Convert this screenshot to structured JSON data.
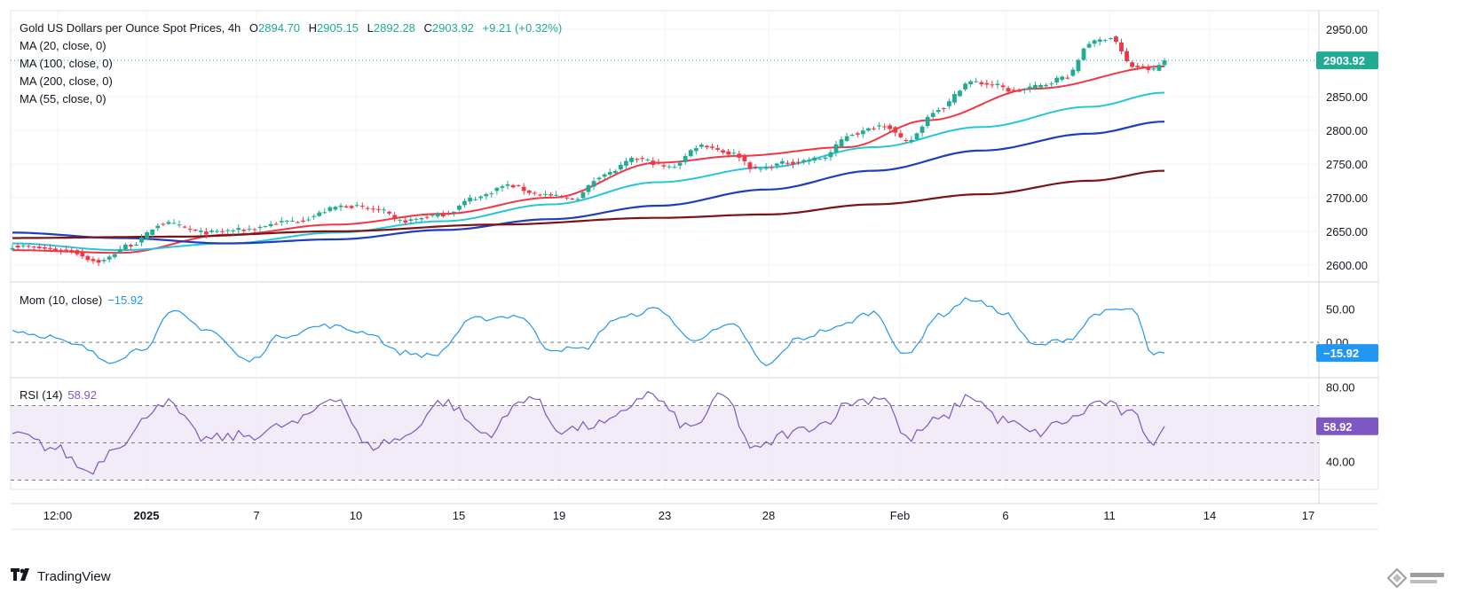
{
  "header": {
    "instrument": "Gold US Dollars per Ounce Spot Prices, 4h",
    "open_label": "O",
    "open": "2894.70",
    "high_label": "H",
    "high": "2905.15",
    "low_label": "L",
    "low": "2892.28",
    "close_label": "C",
    "close": "2903.92",
    "change": "+9.21 (+0.32%)"
  },
  "indicators": {
    "ma20": "MA (20, close, 0)",
    "ma100": "MA (100, close, 0)",
    "ma200": "MA (200, close, 0)",
    "ma55": "MA (55, close, 0)",
    "mom_label": "Mom (10, close)",
    "mom_value": "−15.92",
    "rsi_label": "RSI (14)",
    "rsi_value": "58.92"
  },
  "badges": {
    "price": "2903.92",
    "mom": "−15.92",
    "rsi": "58.92"
  },
  "footer": {
    "brand": "TradingView"
  },
  "colors": {
    "up": "#22ab94",
    "down": "#f23645",
    "ma20": "#f23645",
    "ma55": "#26c6da",
    "ma100": "#1e3ebf",
    "ma200": "#7b1414",
    "mom": "#2196f3",
    "rsi": "#7e57c2",
    "rsi_band": "#ede7f6"
  },
  "chart_data": [
    {
      "type": "candlestick",
      "title": "Gold US Dollars per Ounce Spot Prices, 4h",
      "x_tick_labels": [
        "12:00",
        "2025",
        "7",
        "10",
        "15",
        "19",
        "23",
        "28",
        "Feb",
        "6",
        "11",
        "14",
        "17"
      ],
      "y_tick_labels": [
        "2950.00",
        "2900.00",
        "2850.00",
        "2800.00",
        "2750.00",
        "2700.00",
        "2650.00",
        "2600.00"
      ],
      "ylim": [
        2580,
        2970
      ],
      "last_price": 2903.92,
      "price_anchors": [
        {
          "bar": 0,
          "price": 2628
        },
        {
          "bar": 10,
          "price": 2622
        },
        {
          "bar": 16,
          "price": 2605
        },
        {
          "bar": 22,
          "price": 2630
        },
        {
          "bar": 28,
          "price": 2662
        },
        {
          "bar": 36,
          "price": 2648
        },
        {
          "bar": 42,
          "price": 2652
        },
        {
          "bar": 52,
          "price": 2665
        },
        {
          "bar": 62,
          "price": 2688
        },
        {
          "bar": 68,
          "price": 2682
        },
        {
          "bar": 72,
          "price": 2665
        },
        {
          "bar": 80,
          "price": 2675
        },
        {
          "bar": 86,
          "price": 2700
        },
        {
          "bar": 92,
          "price": 2718
        },
        {
          "bar": 98,
          "price": 2705
        },
        {
          "bar": 104,
          "price": 2698
        },
        {
          "bar": 110,
          "price": 2735
        },
        {
          "bar": 116,
          "price": 2758
        },
        {
          "bar": 122,
          "price": 2745
        },
        {
          "bar": 128,
          "price": 2778
        },
        {
          "bar": 134,
          "price": 2765
        },
        {
          "bar": 138,
          "price": 2742
        },
        {
          "bar": 144,
          "price": 2752
        },
        {
          "bar": 150,
          "price": 2758
        },
        {
          "bar": 156,
          "price": 2795
        },
        {
          "bar": 162,
          "price": 2808
        },
        {
          "bar": 166,
          "price": 2783
        },
        {
          "bar": 172,
          "price": 2832
        },
        {
          "bar": 178,
          "price": 2872
        },
        {
          "bar": 182,
          "price": 2868
        },
        {
          "bar": 186,
          "price": 2858
        },
        {
          "bar": 190,
          "price": 2865
        },
        {
          "bar": 196,
          "price": 2880
        },
        {
          "bar": 200,
          "price": 2930
        },
        {
          "bar": 204,
          "price": 2938
        },
        {
          "bar": 208,
          "price": 2895
        },
        {
          "bar": 212,
          "price": 2890
        },
        {
          "bar": 214,
          "price": 2904
        }
      ],
      "series": [
        {
          "name": "MA (20, close, 0)",
          "anchors": [
            {
              "bar": 0,
              "price": 2622
            },
            {
              "bar": 20,
              "price": 2618
            },
            {
              "bar": 40,
              "price": 2645
            },
            {
              "bar": 60,
              "price": 2660
            },
            {
              "bar": 80,
              "price": 2676
            },
            {
              "bar": 100,
              "price": 2700
            },
            {
              "bar": 120,
              "price": 2752
            },
            {
              "bar": 135,
              "price": 2762
            },
            {
              "bar": 155,
              "price": 2775
            },
            {
              "bar": 170,
              "price": 2815
            },
            {
              "bar": 190,
              "price": 2862
            },
            {
              "bar": 214,
              "price": 2895
            }
          ]
        },
        {
          "name": "MA (55, close, 0)",
          "anchors": [
            {
              "bar": 0,
              "price": 2632
            },
            {
              "bar": 20,
              "price": 2622
            },
            {
              "bar": 40,
              "price": 2632
            },
            {
              "bar": 60,
              "price": 2648
            },
            {
              "bar": 80,
              "price": 2665
            },
            {
              "bar": 100,
              "price": 2690
            },
            {
              "bar": 120,
              "price": 2723
            },
            {
              "bar": 140,
              "price": 2745
            },
            {
              "bar": 160,
              "price": 2775
            },
            {
              "bar": 180,
              "price": 2805
            },
            {
              "bar": 200,
              "price": 2835
            },
            {
              "bar": 214,
              "price": 2856
            }
          ]
        },
        {
          "name": "MA (100, close, 0)",
          "anchors": [
            {
              "bar": 0,
              "price": 2648
            },
            {
              "bar": 20,
              "price": 2640
            },
            {
              "bar": 40,
              "price": 2632
            },
            {
              "bar": 60,
              "price": 2638
            },
            {
              "bar": 80,
              "price": 2652
            },
            {
              "bar": 100,
              "price": 2668
            },
            {
              "bar": 120,
              "price": 2688
            },
            {
              "bar": 140,
              "price": 2712
            },
            {
              "bar": 160,
              "price": 2740
            },
            {
              "bar": 180,
              "price": 2770
            },
            {
              "bar": 200,
              "price": 2795
            },
            {
              "bar": 214,
              "price": 2813
            }
          ]
        },
        {
          "name": "MA (200, close, 0)",
          "anchors": [
            {
              "bar": 0,
              "price": 2640
            },
            {
              "bar": 30,
              "price": 2642
            },
            {
              "bar": 60,
              "price": 2650
            },
            {
              "bar": 90,
              "price": 2660
            },
            {
              "bar": 120,
              "price": 2670
            },
            {
              "bar": 140,
              "price": 2675
            },
            {
              "bar": 160,
              "price": 2690
            },
            {
              "bar": 180,
              "price": 2705
            },
            {
              "bar": 200,
              "price": 2725
            },
            {
              "bar": 214,
              "price": 2740
            }
          ]
        }
      ]
    },
    {
      "type": "line",
      "title": "Mom (10, close)",
      "y_tick_labels": [
        "50.00",
        "0.00"
      ],
      "ylim": [
        -45,
        80
      ],
      "last_value": -15.92,
      "anchors": [
        {
          "bar": 0,
          "value": 18
        },
        {
          "bar": 6,
          "value": 10
        },
        {
          "bar": 12,
          "value": -5
        },
        {
          "bar": 18,
          "value": -28
        },
        {
          "bar": 24,
          "value": -10
        },
        {
          "bar": 30,
          "value": 45
        },
        {
          "bar": 36,
          "value": 20
        },
        {
          "bar": 44,
          "value": -28
        },
        {
          "bar": 50,
          "value": 10
        },
        {
          "bar": 58,
          "value": 25
        },
        {
          "bar": 66,
          "value": 15
        },
        {
          "bar": 72,
          "value": -15
        },
        {
          "bar": 78,
          "value": -20
        },
        {
          "bar": 86,
          "value": 35
        },
        {
          "bar": 94,
          "value": 40
        },
        {
          "bar": 100,
          "value": -10
        },
        {
          "bar": 106,
          "value": -10
        },
        {
          "bar": 112,
          "value": 35
        },
        {
          "bar": 120,
          "value": 50
        },
        {
          "bar": 126,
          "value": 5
        },
        {
          "bar": 134,
          "value": 25
        },
        {
          "bar": 140,
          "value": -35
        },
        {
          "bar": 146,
          "value": 5
        },
        {
          "bar": 152,
          "value": 20
        },
        {
          "bar": 160,
          "value": 45
        },
        {
          "bar": 166,
          "value": -20
        },
        {
          "bar": 172,
          "value": 40
        },
        {
          "bar": 178,
          "value": 65
        },
        {
          "bar": 184,
          "value": 45
        },
        {
          "bar": 190,
          "value": -5
        },
        {
          "bar": 196,
          "value": 5
        },
        {
          "bar": 202,
          "value": 45
        },
        {
          "bar": 208,
          "value": 50
        },
        {
          "bar": 212,
          "value": -20
        },
        {
          "bar": 214,
          "value": -15.92
        }
      ]
    },
    {
      "type": "line",
      "title": "RSI (14)",
      "y_tick_labels": [
        "80.00",
        "40.00"
      ],
      "bands": [
        70,
        50,
        30
      ],
      "ylim": [
        25,
        85
      ],
      "last_value": 58.92,
      "anchors": [
        {
          "bar": 0,
          "value": 55
        },
        {
          "bar": 8,
          "value": 47
        },
        {
          "bar": 14,
          "value": 35
        },
        {
          "bar": 20,
          "value": 50
        },
        {
          "bar": 28,
          "value": 72
        },
        {
          "bar": 36,
          "value": 52
        },
        {
          "bar": 44,
          "value": 54
        },
        {
          "bar": 52,
          "value": 60
        },
        {
          "bar": 60,
          "value": 75
        },
        {
          "bar": 66,
          "value": 48
        },
        {
          "bar": 72,
          "value": 52
        },
        {
          "bar": 80,
          "value": 72
        },
        {
          "bar": 88,
          "value": 55
        },
        {
          "bar": 96,
          "value": 75
        },
        {
          "bar": 102,
          "value": 57
        },
        {
          "bar": 110,
          "value": 60
        },
        {
          "bar": 118,
          "value": 76
        },
        {
          "bar": 126,
          "value": 58
        },
        {
          "bar": 132,
          "value": 75
        },
        {
          "bar": 138,
          "value": 46
        },
        {
          "bar": 144,
          "value": 55
        },
        {
          "bar": 150,
          "value": 60
        },
        {
          "bar": 156,
          "value": 72
        },
        {
          "bar": 162,
          "value": 75
        },
        {
          "bar": 166,
          "value": 52
        },
        {
          "bar": 172,
          "value": 62
        },
        {
          "bar": 178,
          "value": 75
        },
        {
          "bar": 184,
          "value": 62
        },
        {
          "bar": 190,
          "value": 55
        },
        {
          "bar": 196,
          "value": 62
        },
        {
          "bar": 202,
          "value": 72
        },
        {
          "bar": 208,
          "value": 65
        },
        {
          "bar": 212,
          "value": 51
        },
        {
          "bar": 214,
          "value": 58.92
        }
      ]
    }
  ]
}
